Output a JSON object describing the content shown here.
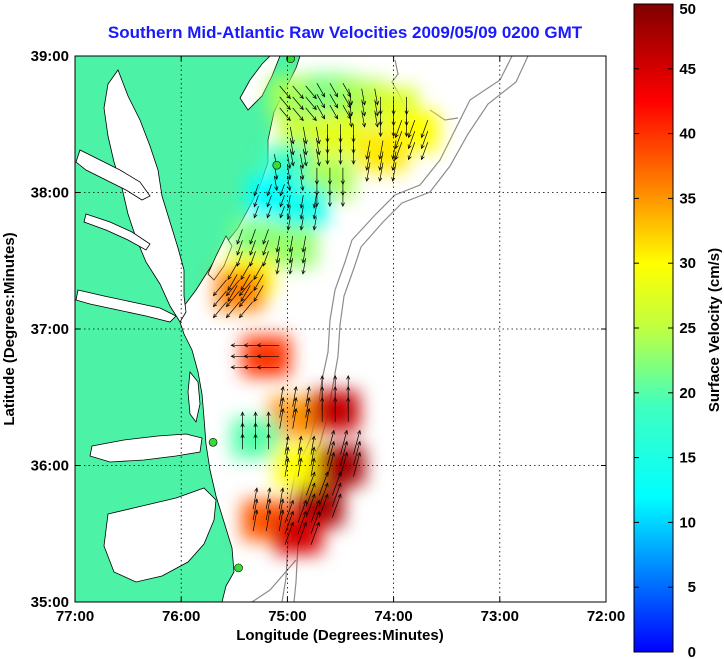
{
  "chart_data": {
    "type": "heatmap",
    "title": "Southern Mid-Atlantic Raw Velocities 2009/05/09 0200 GMT",
    "xlabel": "Longitude (Degrees:Minutes)",
    "ylabel": "Latitude (Degrees:Minutes)",
    "xlim": [
      -77,
      -72
    ],
    "ylim": [
      35,
      39
    ],
    "x_ticks": [
      {
        "value": -77,
        "label": "77:00"
      },
      {
        "value": -76,
        "label": "76:00"
      },
      {
        "value": -75,
        "label": "75:00"
      },
      {
        "value": -74,
        "label": "74:00"
      },
      {
        "value": -73,
        "label": "73:00"
      },
      {
        "value": -72,
        "label": "72:00"
      }
    ],
    "y_ticks": [
      {
        "value": 35,
        "label": "35:00"
      },
      {
        "value": 36,
        "label": "36:00"
      },
      {
        "value": 37,
        "label": "37:00"
      },
      {
        "value": 38,
        "label": "38:00"
      },
      {
        "value": 39,
        "label": "39:00"
      }
    ],
    "grid": true,
    "colorbar": {
      "label": "Surface Velocity (cm/s)",
      "min": 0,
      "max": 50,
      "ticks": [
        {
          "value": 0,
          "label": "0"
        },
        {
          "value": 5,
          "label": "5"
        },
        {
          "value": 10,
          "label": "10"
        },
        {
          "value": 15,
          "label": "15"
        },
        {
          "value": 20,
          "label": "20"
        },
        {
          "value": 25,
          "label": "25"
        },
        {
          "value": 30,
          "label": "30"
        },
        {
          "value": 35,
          "label": "35"
        },
        {
          "value": 40,
          "label": "40"
        },
        {
          "value": 45,
          "label": "45"
        },
        {
          "value": 50,
          "label": "50"
        }
      ]
    },
    "colors": {
      "land": "#4cf2a6",
      "water": "#ffffff",
      "title": "#1a1aff",
      "station": "#33dd33",
      "bathymetry": "#8c8c8c"
    },
    "stations": [
      {
        "lon": -74.97,
        "lat": 38.98
      },
      {
        "lon": -75.1,
        "lat": 38.2
      },
      {
        "lon": -75.7,
        "lat": 36.17
      },
      {
        "lon": -75.46,
        "lat": 35.25
      }
    ],
    "velocity_cells": [
      {
        "lon": -74.95,
        "lat": 38.7,
        "speed": 24,
        "dir": 140
      },
      {
        "lon": -74.6,
        "lat": 38.72,
        "speed": 22,
        "dir": 150
      },
      {
        "lon": -74.3,
        "lat": 38.68,
        "speed": 24,
        "dir": 170
      },
      {
        "lon": -74.0,
        "lat": 38.62,
        "speed": 27,
        "dir": 180
      },
      {
        "lon": -73.8,
        "lat": 38.45,
        "speed": 30,
        "dir": 200
      },
      {
        "lon": -74.85,
        "lat": 38.4,
        "speed": 26,
        "dir": 170
      },
      {
        "lon": -74.5,
        "lat": 38.42,
        "speed": 28,
        "dir": 180
      },
      {
        "lon": -74.1,
        "lat": 38.3,
        "speed": 31,
        "dir": 190
      },
      {
        "lon": -75.0,
        "lat": 38.2,
        "speed": 18,
        "dir": 170
      },
      {
        "lon": -74.6,
        "lat": 38.1,
        "speed": 24,
        "dir": 180
      },
      {
        "lon": -75.15,
        "lat": 37.98,
        "speed": 12,
        "dir": 200
      },
      {
        "lon": -74.85,
        "lat": 37.9,
        "speed": 14,
        "dir": 190
      },
      {
        "lon": -75.3,
        "lat": 37.65,
        "speed": 22,
        "dir": 200
      },
      {
        "lon": -74.95,
        "lat": 37.6,
        "speed": 23,
        "dir": 190
      },
      {
        "lon": -75.35,
        "lat": 37.4,
        "speed": 30,
        "dir": 210
      },
      {
        "lon": -75.45,
        "lat": 37.28,
        "speed": 36,
        "dir": 220
      },
      {
        "lon": -75.2,
        "lat": 36.8,
        "speed": 40,
        "dir": 270
      },
      {
        "lon": -74.95,
        "lat": 36.35,
        "speed": 35,
        "dir": 10
      },
      {
        "lon": -74.55,
        "lat": 36.4,
        "speed": 46,
        "dir": 0
      },
      {
        "lon": -75.3,
        "lat": 36.2,
        "speed": 20,
        "dir": 0
      },
      {
        "lon": -74.9,
        "lat": 36.0,
        "speed": 30,
        "dir": 10
      },
      {
        "lon": -74.5,
        "lat": 36.0,
        "speed": 48,
        "dir": 15
      },
      {
        "lon": -74.7,
        "lat": 35.7,
        "speed": 48,
        "dir": 20
      },
      {
        "lon": -75.2,
        "lat": 35.6,
        "speed": 38,
        "dir": 10
      },
      {
        "lon": -74.9,
        "lat": 35.5,
        "speed": 45,
        "dir": 20
      }
    ]
  }
}
